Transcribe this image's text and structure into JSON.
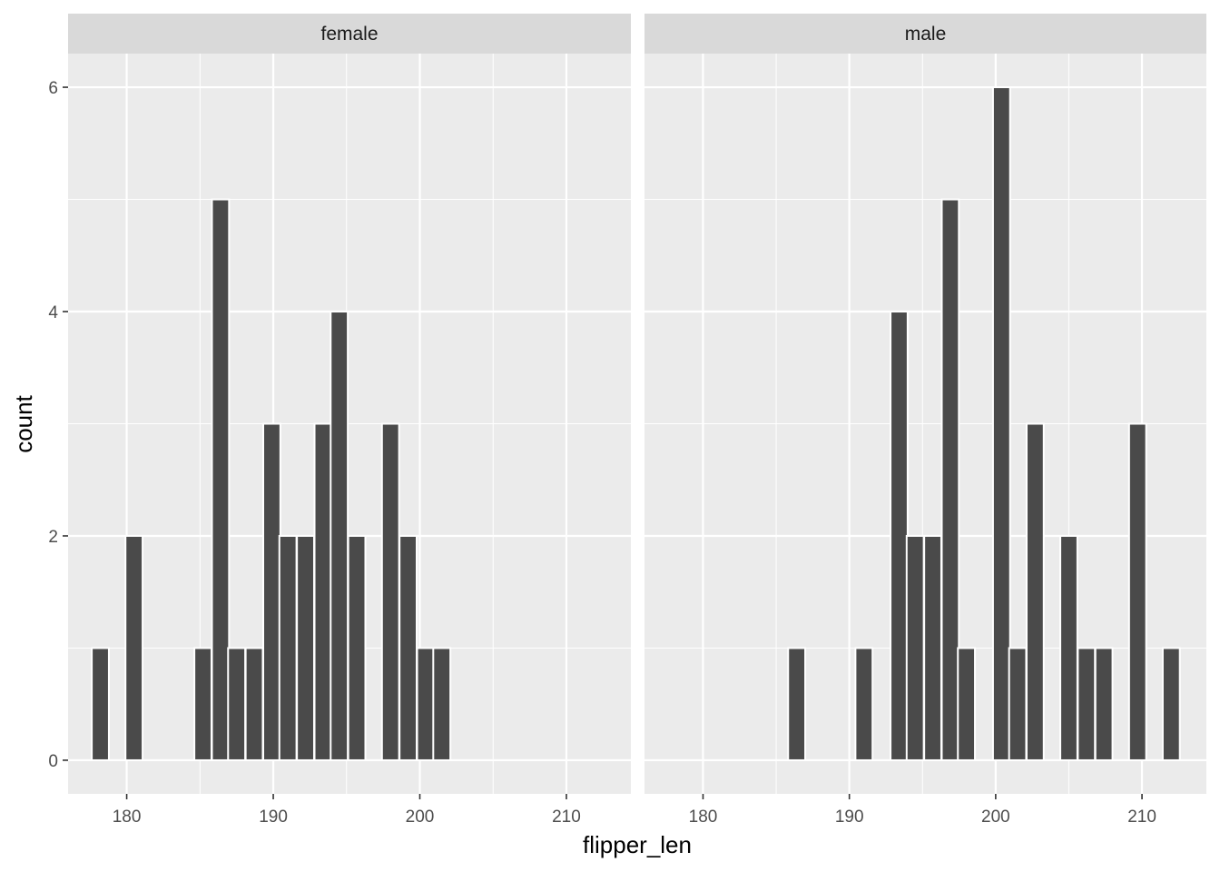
{
  "chart_data": {
    "type": "bar",
    "xlabel": "flipper_len",
    "ylabel": "count",
    "xlim": [
      176,
      214.4
    ],
    "ylim": [
      -0.3,
      6.3
    ],
    "x_ticks": [
      180,
      190,
      200,
      210
    ],
    "y_ticks": [
      0,
      2,
      4,
      6
    ],
    "x_tick_labels": [
      "180",
      "190",
      "200",
      "210"
    ],
    "y_tick_labels": [
      "0",
      "2",
      "4",
      "6"
    ],
    "grid": true,
    "bin_width": 1.167,
    "panels": [
      {
        "facet": "female",
        "bins": [
          {
            "x": 178.2,
            "count": 1
          },
          {
            "x": 180.5,
            "count": 2
          },
          {
            "x": 185.2,
            "count": 1
          },
          {
            "x": 186.4,
            "count": 5
          },
          {
            "x": 187.5,
            "count": 1
          },
          {
            "x": 188.7,
            "count": 1
          },
          {
            "x": 189.9,
            "count": 3
          },
          {
            "x": 191.0,
            "count": 2
          },
          {
            "x": 192.2,
            "count": 2
          },
          {
            "x": 193.4,
            "count": 3
          },
          {
            "x": 194.5,
            "count": 4
          },
          {
            "x": 195.7,
            "count": 2
          },
          {
            "x": 198.0,
            "count": 3
          },
          {
            "x": 199.2,
            "count": 2
          },
          {
            "x": 200.4,
            "count": 1
          },
          {
            "x": 201.5,
            "count": 1
          }
        ]
      },
      {
        "facet": "male",
        "bins": [
          {
            "x": 186.4,
            "count": 1
          },
          {
            "x": 191.0,
            "count": 1
          },
          {
            "x": 193.4,
            "count": 4
          },
          {
            "x": 194.5,
            "count": 2
          },
          {
            "x": 195.7,
            "count": 2
          },
          {
            "x": 196.9,
            "count": 5
          },
          {
            "x": 198.0,
            "count": 1
          },
          {
            "x": 200.4,
            "count": 6
          },
          {
            "x": 201.5,
            "count": 1
          },
          {
            "x": 202.7,
            "count": 3
          },
          {
            "x": 205.0,
            "count": 2
          },
          {
            "x": 206.2,
            "count": 1
          },
          {
            "x": 207.4,
            "count": 1
          },
          {
            "x": 209.7,
            "count": 3
          },
          {
            "x": 212.0,
            "count": 1
          }
        ]
      }
    ]
  },
  "colors": {
    "panel_bg": "#ebebeb",
    "strip_bg": "#d9d9d9",
    "grid": "#ffffff",
    "bar_fill": "#4a4a4a",
    "bar_outline": "#ffffff",
    "tick": "#333333"
  }
}
